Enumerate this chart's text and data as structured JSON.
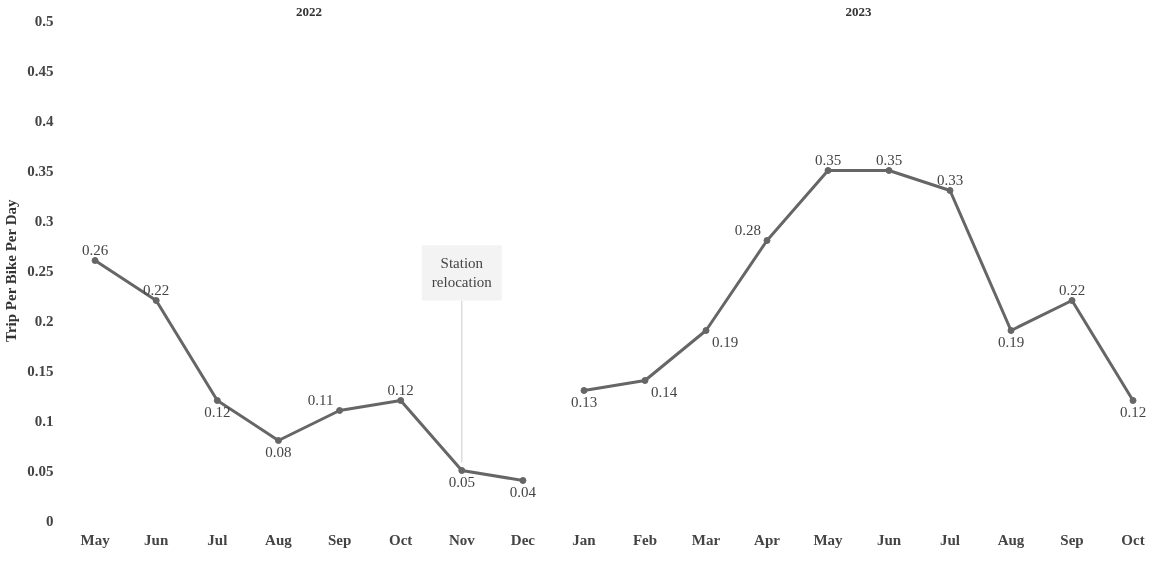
{
  "chart_data": [
    {
      "type": "line",
      "title": "2022",
      "ylabel": "Trip Per Bike Per Day",
      "categories": [
        "May",
        "Jun",
        "Jul",
        "Aug",
        "Sep",
        "Oct",
        "Nov",
        "Dec"
      ],
      "values": [
        0.26,
        0.22,
        0.12,
        0.08,
        0.11,
        0.12,
        0.05,
        0.04
      ],
      "color": "#666666",
      "ylim": [
        0,
        0.5
      ],
      "yticks": [
        0,
        0.05,
        0.1,
        0.15,
        0.2,
        0.25,
        0.3,
        0.35,
        0.4,
        0.45,
        0.5
      ],
      "data_labels": true,
      "marker": "circle",
      "line_style": "solid",
      "annotations": [
        {
          "text": "Station relocation",
          "x": "Nov",
          "y": 0.05
        }
      ]
    },
    {
      "type": "line",
      "title": "2023",
      "categories": [
        "Jan",
        "Feb",
        "Mar",
        "Apr",
        "May",
        "Jun",
        "Jul",
        "Aug",
        "Sep",
        "Oct"
      ],
      "values": [
        0.13,
        0.14,
        0.19,
        0.28,
        0.35,
        0.35,
        0.33,
        0.19,
        0.22,
        0.12
      ],
      "color": "#666666",
      "ylim": [
        0,
        0.5
      ],
      "yticks": [
        0,
        0.05,
        0.1,
        0.15,
        0.2,
        0.25,
        0.3,
        0.35,
        0.4,
        0.45,
        0.5
      ],
      "tick_labels": "x",
      "data_labels": true,
      "marker": "circle",
      "line_style": "solid"
    }
  ]
}
